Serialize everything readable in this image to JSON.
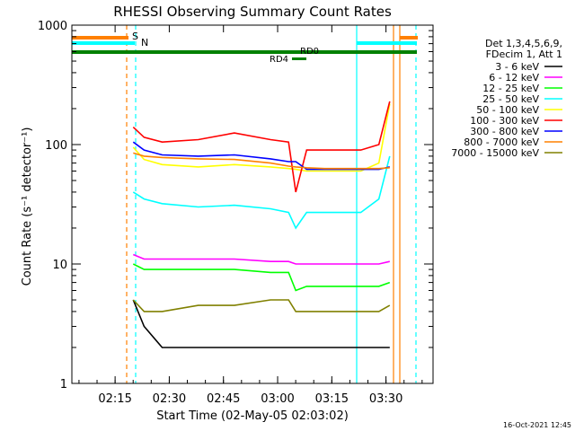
{
  "chart_data": {
    "type": "line",
    "title": "RHESSI Observing Summary Count Rates",
    "xlabel": "Start Time (02-May-05 02:03:02)",
    "ylabel": "Count Rate (s⁻¹ detector⁻¹)",
    "x_unit": "minutes after 02:03:02",
    "xlim": [
      0,
      100
    ],
    "ylim": [
      1,
      1000
    ],
    "yscale": "log",
    "x_ticks": [
      {
        "label": "02:15",
        "value": 11.97
      },
      {
        "label": "02:30",
        "value": 26.97
      },
      {
        "label": "02:45",
        "value": 41.97
      },
      {
        "label": "03:00",
        "value": 56.97
      },
      {
        "label": "03:15",
        "value": 71.97
      },
      {
        "label": "03:30",
        "value": 86.97
      }
    ],
    "y_ticks": [
      {
        "label": "1",
        "value": 1
      },
      {
        "label": "10",
        "value": 10
      },
      {
        "label": "100",
        "value": 100
      },
      {
        "label": "1000",
        "value": 1000
      }
    ],
    "legend_header": [
      "Det 1,3,4,5,6,9,",
      "FDecim 1, Att 1"
    ],
    "legend_position": "right",
    "series": [
      {
        "name": "3 - 6 keV",
        "color": "#000000",
        "x": [
          17,
          20,
          25,
          35,
          45,
          55,
          60,
          65,
          70,
          75,
          80,
          88
        ],
        "y": [
          5,
          3,
          2,
          2,
          2,
          2,
          2,
          2,
          2,
          2,
          2,
          2
        ]
      },
      {
        "name": "6 - 12 keV",
        "color": "#ff00ff",
        "x": [
          17,
          20,
          25,
          35,
          45,
          55,
          60,
          62,
          65,
          70,
          75,
          80,
          85,
          88
        ],
        "y": [
          12,
          11,
          11,
          11,
          11,
          10.5,
          10.5,
          10,
          10,
          10,
          10,
          10,
          10,
          10.5
        ]
      },
      {
        "name": "12 - 25 keV",
        "color": "#00ff00",
        "x": [
          17,
          20,
          25,
          35,
          45,
          55,
          60,
          62,
          65,
          70,
          75,
          80,
          85,
          88
        ],
        "y": [
          10,
          9,
          9,
          9,
          9,
          8.5,
          8.5,
          6,
          6.5,
          6.5,
          6.5,
          6.5,
          6.5,
          7
        ]
      },
      {
        "name": "25 - 50 keV",
        "color": "#00ffff",
        "x": [
          17,
          20,
          25,
          35,
          45,
          55,
          60,
          62,
          65,
          70,
          75,
          80,
          85,
          88
        ],
        "y": [
          40,
          35,
          32,
          30,
          31,
          29,
          27,
          20,
          27,
          27,
          27,
          27,
          35,
          80
        ]
      },
      {
        "name": "50 - 100 keV",
        "color": "#ffff00",
        "x": [
          17,
          20,
          25,
          35,
          45,
          55,
          60,
          62,
          65,
          70,
          75,
          80,
          85,
          88
        ],
        "y": [
          95,
          75,
          68,
          65,
          68,
          65,
          63,
          62,
          60,
          60,
          60,
          60,
          70,
          220
        ]
      },
      {
        "name": "100 - 300 keV",
        "color": "#ff0000",
        "x": [
          17,
          20,
          25,
          35,
          45,
          55,
          60,
          62,
          65,
          70,
          75,
          80,
          85,
          88
        ],
        "y": [
          140,
          115,
          105,
          110,
          125,
          110,
          105,
          40,
          90,
          90,
          90,
          90,
          100,
          230
        ]
      },
      {
        "name": "300 - 800 keV",
        "color": "#0000ff",
        "x": [
          17,
          20,
          25,
          35,
          45,
          55,
          60,
          62,
          65,
          70,
          75,
          80,
          85,
          88
        ],
        "y": [
          105,
          90,
          82,
          80,
          82,
          76,
          72,
          72,
          62,
          62,
          62,
          62,
          62,
          65
        ]
      },
      {
        "name": "800 - 7000 keV",
        "color": "#ff8000",
        "x": [
          17,
          20,
          25,
          35,
          45,
          55,
          60,
          62,
          65,
          70,
          75,
          80,
          85,
          88
        ],
        "y": [
          85,
          80,
          78,
          76,
          75,
          70,
          66,
          65,
          64,
          63,
          63,
          63,
          63,
          64
        ]
      },
      {
        "name": "7000 - 15000 keV",
        "color": "#808000",
        "x": [
          17,
          20,
          25,
          35,
          45,
          55,
          60,
          62,
          65,
          70,
          75,
          80,
          85,
          88
        ],
        "y": [
          5,
          4,
          4,
          4.5,
          4.5,
          5,
          5,
          4,
          4,
          4,
          4,
          4,
          4,
          4.5
        ]
      }
    ],
    "annotations": [
      {
        "text": "S",
        "color": "#ff8000"
      },
      {
        "text": "N",
        "color": "#00ffff"
      },
      {
        "text": "RD0",
        "color": "#008000"
      },
      {
        "text": "RD4",
        "color": "#008000"
      }
    ],
    "footer_date": "16-Oct-2021 12:45"
  }
}
